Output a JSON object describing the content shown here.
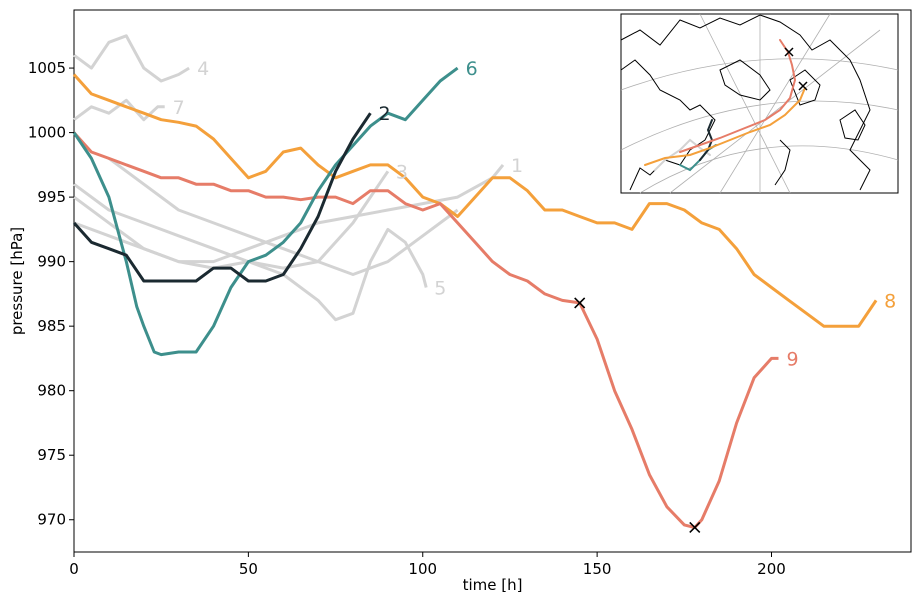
{
  "chart_data": {
    "type": "line",
    "xlabel": "time [h]",
    "ylabel": "pressure [hPa]",
    "xlim": [
      0,
      240
    ],
    "ylim": [
      967.5,
      1009.5
    ],
    "xticks": [
      0,
      50,
      100,
      150,
      200
    ],
    "yticks": [
      970,
      975,
      980,
      985,
      990,
      995,
      1000,
      1005
    ],
    "grid": false,
    "series": [
      {
        "name": "4",
        "color": "#d3d3d3",
        "x": [
          0,
          5,
          10,
          15,
          16,
          20,
          25,
          30,
          33
        ],
        "y": [
          1006,
          1005,
          1007,
          1007.5,
          1007,
          1005,
          1004,
          1004.5,
          1005
        ]
      },
      {
        "name": "7",
        "color": "#d3d3d3",
        "x": [
          0,
          5,
          10,
          15,
          20,
          24,
          26
        ],
        "y": [
          1001,
          1002,
          1001.5,
          1002.5,
          1001,
          1002,
          1002
        ]
      },
      {
        "name": "3",
        "color": "#d3d3d3",
        "x": [
          0,
          10,
          20,
          30,
          40,
          50,
          60,
          70,
          80,
          85,
          90
        ],
        "y": [
          996,
          994,
          993,
          992,
          991,
          990,
          989.5,
          990,
          993,
          995,
          997
        ]
      },
      {
        "name": "1",
        "color": "#d3d3d3",
        "x": [
          0,
          10,
          20,
          30,
          40,
          50,
          60,
          70,
          80,
          90,
          100,
          110,
          120,
          123
        ],
        "y": [
          995,
          993,
          991,
          990,
          990,
          991,
          992,
          993,
          993.5,
          994,
          994.5,
          995,
          996.5,
          997.5
        ]
      },
      {
        "name": "5",
        "color": "#d3d3d3",
        "x": [
          0,
          10,
          20,
          30,
          40,
          50,
          60,
          70,
          75,
          80,
          85,
          90,
          95,
          100,
          101
        ],
        "y": [
          993,
          992,
          991,
          990,
          989.5,
          990,
          989,
          987,
          985.5,
          986,
          990,
          992.5,
          991.5,
          989,
          988
        ]
      },
      {
        "name": "",
        "color": "#d3d3d3",
        "x": [
          10,
          20,
          30,
          40,
          50,
          60,
          70,
          80,
          90,
          100,
          110
        ],
        "y": [
          998,
          996,
          994,
          993,
          992,
          991,
          990,
          989,
          990,
          992,
          994
        ]
      },
      {
        "name": "8",
        "color": "#f4a03b",
        "x": [
          0,
          5,
          10,
          15,
          20,
          25,
          30,
          35,
          40,
          45,
          50,
          55,
          60,
          65,
          70,
          75,
          80,
          85,
          90,
          95,
          100,
          105,
          110,
          115,
          120,
          125,
          130,
          135,
          140,
          145,
          150,
          155,
          160,
          165,
          170,
          175,
          180,
          185,
          190,
          195,
          200,
          205,
          210,
          215,
          220,
          225,
          230
        ],
        "y": [
          1004.5,
          1003,
          1002.5,
          1002,
          1001.5,
          1001,
          1000.8,
          1000.5,
          999.5,
          998,
          996.5,
          997,
          998.5,
          998.8,
          997.5,
          996.5,
          997,
          997.5,
          997.5,
          996.5,
          995,
          994.5,
          993.5,
          995,
          996.5,
          996.5,
          995.5,
          994,
          994,
          993.5,
          993,
          993,
          992.5,
          994.5,
          994.5,
          994,
          993,
          992.5,
          991,
          989,
          988,
          987,
          986,
          985,
          985,
          985,
          987
        ]
      },
      {
        "name": "9",
        "color": "#e67c68",
        "x": [
          0,
          5,
          10,
          15,
          20,
          25,
          30,
          35,
          40,
          45,
          50,
          55,
          60,
          65,
          70,
          75,
          80,
          85,
          90,
          95,
          100,
          105,
          110,
          115,
          120,
          125,
          130,
          135,
          140,
          145,
          150,
          155,
          160,
          165,
          170,
          175,
          178,
          180,
          185,
          190,
          195,
          200,
          202
        ],
        "y": [
          1000,
          998.5,
          998,
          997.5,
          997,
          996.5,
          996.5,
          996,
          996,
          995.5,
          995.5,
          995,
          995,
          994.8,
          995,
          995,
          994.5,
          995.5,
          995.5,
          994.5,
          994,
          994.5,
          993,
          991.5,
          990,
          989,
          988.5,
          987.5,
          987,
          986.8,
          984,
          980,
          977,
          973.5,
          971,
          969.6,
          969.4,
          970,
          973,
          977.5,
          981,
          982.5,
          982.5
        ]
      },
      {
        "name": "6",
        "color": "#3d8f8c",
        "x": [
          0,
          5,
          10,
          13,
          15,
          18,
          20,
          23,
          25,
          30,
          35,
          40,
          45,
          50,
          55,
          60,
          65,
          70,
          75,
          80,
          85,
          90,
          95,
          100,
          105,
          110
        ],
        "y": [
          1000,
          998,
          995,
          992,
          990,
          986.5,
          985,
          983,
          982.8,
          983,
          983,
          985,
          988,
          990,
          990.5,
          991.5,
          993,
          995.5,
          997.5,
          999,
          1000.5,
          1001.5,
          1001,
          1002.5,
          1004,
          1005
        ]
      },
      {
        "name": "2",
        "color": "#1b2a31",
        "x": [
          0,
          5,
          10,
          15,
          20,
          25,
          30,
          35,
          40,
          45,
          50,
          55,
          60,
          65,
          70,
          75,
          80,
          85
        ],
        "y": [
          993,
          991.5,
          991,
          990.5,
          988.5,
          988.5,
          988.5,
          988.5,
          989.5,
          989.5,
          988.5,
          988.5,
          989,
          991,
          993.5,
          997,
          999.5,
          1001.5
        ]
      }
    ],
    "markers": [
      {
        "type": "x",
        "x": 145,
        "y": 986.8
      },
      {
        "type": "x",
        "x": 178,
        "y": 969.4
      }
    ]
  },
  "inset": {
    "land_color": "#ffffff",
    "coast_color": "#000000",
    "graticule_color": "#b0b0b0",
    "description_series": [
      "8",
      "9",
      "6",
      "2"
    ]
  }
}
